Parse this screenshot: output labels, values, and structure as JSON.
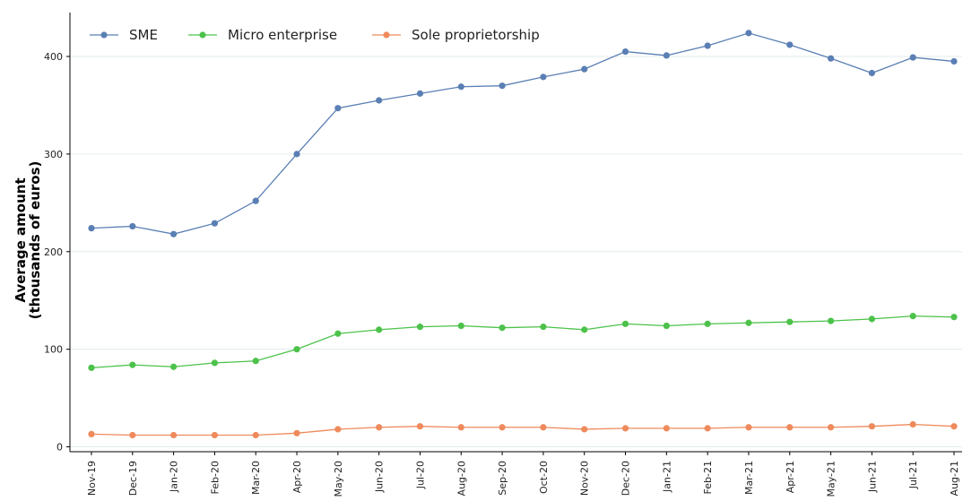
{
  "chart_data": {
    "type": "line",
    "categories": [
      "Nov-19",
      "Dec-19",
      "Jan-20",
      "Feb-20",
      "Mar-20",
      "Apr-20",
      "May-20",
      "Jun-20",
      "Jul-20",
      "Aug-20",
      "Sep-20",
      "Oct-20",
      "Nov-20",
      "Dec-20",
      "Jan-21",
      "Feb-21",
      "Mar-21",
      "Apr-21",
      "May-21",
      "Jun-21",
      "Jul-21",
      "Aug-21"
    ],
    "series": [
      {
        "name": "SME",
        "color": "#5a7fb4",
        "values": [
          224,
          226,
          218,
          229,
          252,
          300,
          347,
          355,
          362,
          369,
          370,
          379,
          387,
          405,
          401,
          411,
          424,
          412,
          398,
          383,
          399,
          395
        ]
      },
      {
        "name": "Micro enterprise",
        "color": "#4cc24a",
        "values": [
          81,
          84,
          82,
          86,
          88,
          100,
          116,
          120,
          123,
          124,
          122,
          123,
          120,
          126,
          124,
          126,
          127,
          128,
          129,
          131,
          134,
          133
        ]
      },
      {
        "name": "Sole proprietorship",
        "color": "#ef8a5c",
        "values": [
          13,
          12,
          12,
          12,
          12,
          14,
          18,
          20,
          21,
          20,
          20,
          20,
          18,
          19,
          19,
          19,
          20,
          20,
          20,
          21,
          23,
          21
        ]
      }
    ],
    "ylabel_line1": "Average amount",
    "ylabel_line2": "(thousands of euros)",
    "yticks": [
      0,
      100,
      200,
      300,
      400
    ],
    "ylim": [
      -5,
      445
    ],
    "grid": "horizontal",
    "legend_position": "top-left"
  }
}
